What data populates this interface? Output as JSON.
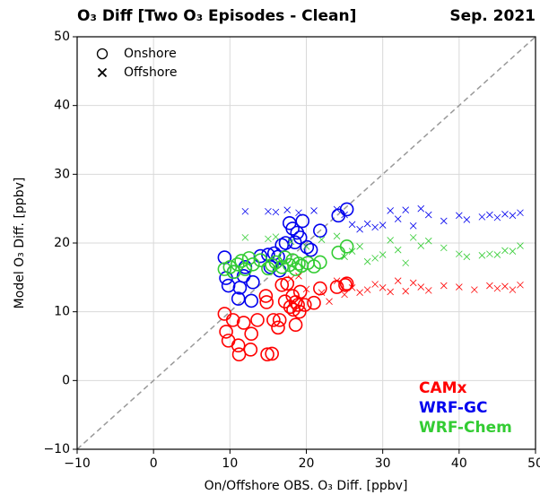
{
  "chart_data": {
    "type": "scatter",
    "title": "O₃ Diff [Two O₃ Episodes - Clean]",
    "title_right": "Sep. 2021",
    "x_label": "On/Offshore OBS. O₃ Diff. [ppbv]",
    "y_label": "Model O₃ Diff. [ppbv]",
    "xlim": [
      -10,
      50
    ],
    "ylim": [
      -10,
      50
    ],
    "xticks": [
      {
        "value": -10,
        "label": "−10"
      },
      0,
      10,
      20,
      30,
      40,
      50
    ],
    "yticks": [
      {
        "value": -10,
        "label": "−10"
      },
      0,
      10,
      20,
      30,
      40,
      50
    ],
    "grid": true,
    "one_to_one_line": true,
    "legend_corner": "lower right",
    "marker_legend_corner": "upper left",
    "marker_legend": [
      {
        "label": "Onshore",
        "marker": "circle"
      },
      {
        "label": "Offshore",
        "marker": "x"
      }
    ],
    "series": [
      {
        "name": "CAMx",
        "color": "#ff0000",
        "onshore": {
          "x": [
            9.3,
            9.5,
            10.4,
            9.8,
            11.1,
            11.2,
            11.8,
            12.8,
            12.7,
            13.6,
            14.7,
            14.8,
            14.9,
            15.5,
            15.7,
            16.3,
            16.5,
            16.8,
            17.2,
            17.5,
            17.9,
            18.2,
            18.3,
            18.6,
            18.6,
            18.9,
            19.2,
            19.1,
            19.8,
            21.0,
            21.8,
            24.0,
            25.1,
            25.3
          ],
          "values": [
            9.7,
            7.1,
            8.8,
            5.8,
            5.1,
            3.8,
            8.4,
            6.8,
            4.5,
            8.8,
            12.3,
            11.4,
            3.8,
            3.9,
            8.8,
            7.7,
            8.8,
            13.9,
            11.5,
            14.1,
            10.7,
            12.3,
            10.3,
            11.4,
            8.1,
            11.0,
            12.9,
            10.0,
            11.0,
            11.3,
            13.4,
            13.6,
            13.9,
            14.1
          ]
        },
        "offshore": {
          "x": [
            18,
            19,
            20,
            22,
            23,
            24,
            25,
            26,
            27,
            28,
            29,
            30,
            31,
            32,
            33,
            34,
            35,
            36,
            38,
            40,
            42,
            44,
            45,
            46,
            47,
            48
          ],
          "values": [
            14.8,
            15.2,
            13.3,
            12.8,
            11.5,
            14.5,
            12.5,
            13.5,
            12.8,
            13.2,
            14.0,
            13.5,
            12.9,
            14.5,
            13.0,
            14.2,
            13.6,
            13.1,
            13.8,
            13.6,
            13.2,
            13.8,
            13.4,
            13.7,
            13.2,
            13.9
          ]
        }
      },
      {
        "name": "WRF-GC",
        "color": "#0000ee",
        "onshore": {
          "x": [
            9.3,
            9.5,
            9.8,
            10.5,
            11.1,
            11.3,
            11.8,
            12.8,
            13.0,
            14.0,
            15.0,
            15.3,
            15.8,
            16.3,
            16.8,
            17.3,
            17.8,
            18.2,
            18.5,
            18.8,
            19.2,
            19.5,
            20.1,
            20.6,
            21.8,
            24.2,
            25.3,
            16.5,
            12.0
          ],
          "values": [
            17.9,
            14.9,
            13.8,
            15.8,
            11.9,
            13.5,
            15.2,
            11.6,
            14.3,
            18.1,
            18.3,
            16.5,
            18.5,
            18.0,
            19.7,
            20.0,
            22.9,
            22.1,
            20.1,
            21.5,
            20.8,
            23.2,
            19.4,
            19.0,
            21.8,
            24.0,
            24.9,
            16.0,
            16.5
          ]
        },
        "offshore": {
          "x": [
            12,
            15,
            16,
            17.5,
            19,
            21,
            24,
            25,
            26,
            27,
            28,
            29,
            30,
            31,
            32,
            33,
            34,
            35,
            36,
            38,
            40,
            41,
            43,
            44,
            45,
            46,
            47,
            48
          ],
          "values": [
            24.6,
            24.6,
            24.5,
            24.8,
            24.4,
            24.7,
            24.9,
            24.1,
            22.7,
            22.0,
            22.8,
            22.3,
            22.6,
            24.7,
            23.5,
            24.8,
            22.5,
            25.0,
            24.1,
            23.2,
            24.0,
            23.4,
            23.8,
            24.1,
            23.7,
            24.2,
            24.0,
            24.4
          ]
        }
      },
      {
        "name": "WRF-Chem",
        "color": "#33cc33",
        "onshore": {
          "x": [
            9.3,
            10,
            10.5,
            11,
            11.5,
            12,
            12.5,
            13,
            14,
            15,
            15.5,
            16,
            16.8,
            17.2,
            17.8,
            18.2,
            18.6,
            19,
            19.4,
            20.2,
            21,
            21.8,
            24.2,
            25.3
          ],
          "values": [
            16.2,
            16.5,
            15.8,
            16.9,
            17.4,
            16.2,
            17.8,
            16.9,
            17.5,
            16.3,
            16.8,
            17.2,
            16.5,
            17.9,
            16.8,
            17.5,
            16.2,
            17.0,
            16.7,
            17.1,
            16.6,
            17.2,
            18.6,
            19.5
          ]
        },
        "offshore": {
          "x": [
            12,
            15,
            16,
            18,
            20,
            22,
            24,
            25,
            26,
            27,
            28,
            29,
            30,
            31,
            32,
            33,
            34,
            35,
            36,
            38,
            40,
            41,
            43,
            44,
            45,
            46,
            47,
            48
          ],
          "values": [
            20.8,
            20.6,
            20.9,
            20.2,
            19.5,
            20.5,
            21.0,
            18.0,
            18.8,
            19.5,
            17.3,
            17.8,
            18.3,
            20.4,
            19.0,
            17.1,
            20.8,
            19.6,
            20.3,
            19.3,
            18.4,
            18.0,
            18.2,
            18.4,
            18.3,
            18.9,
            18.8,
            19.6
          ]
        }
      }
    ]
  }
}
